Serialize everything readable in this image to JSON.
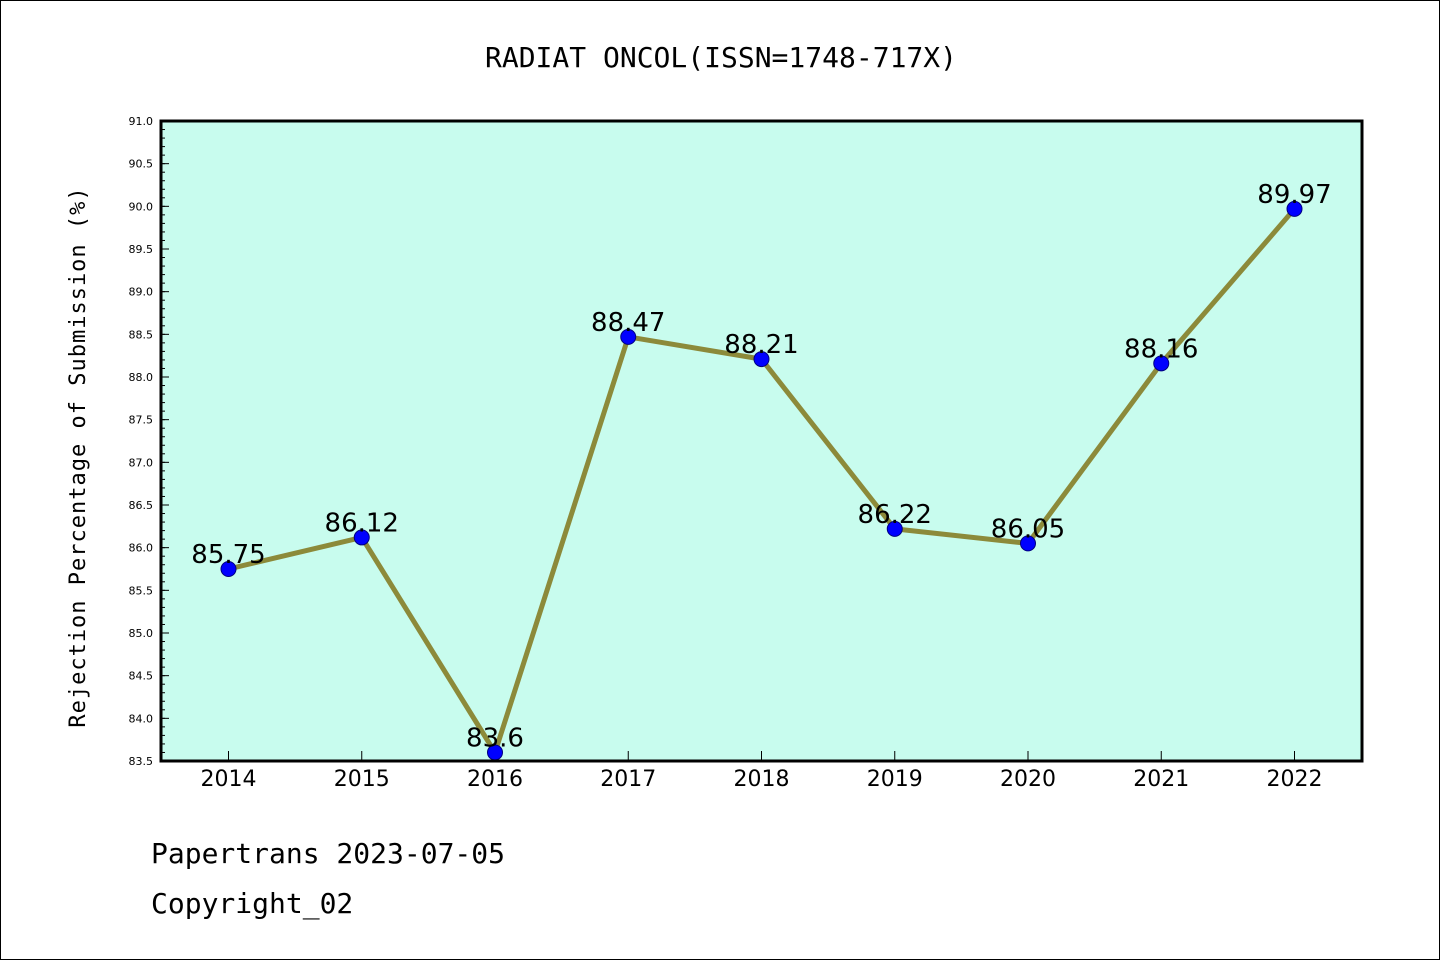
{
  "chart_data": {
    "type": "line",
    "title": "RADIAT ONCOL(ISSN=1748-717X)",
    "ylabel": "Rejection Percentage of Submission (%)",
    "xlabel": "",
    "categories": [
      "2014",
      "2015",
      "2016",
      "2017",
      "2018",
      "2019",
      "2020",
      "2021",
      "2022"
    ],
    "values": [
      85.75,
      86.12,
      83.6,
      88.47,
      88.21,
      86.22,
      86.05,
      88.16,
      89.97
    ],
    "data_labels": [
      "85.75",
      "86.12",
      "83.6",
      "88.47",
      "88.21",
      "86.22",
      "86.05",
      "88.16",
      "89.97"
    ],
    "ylim": [
      83.5,
      91.0
    ],
    "yticks": [
      "83.5",
      "84.0",
      "84.5",
      "85.0",
      "85.5",
      "86.0",
      "86.5",
      "87.0",
      "87.5",
      "88.0",
      "88.5",
      "89.0",
      "89.5",
      "90.0",
      "90.5",
      "91.0"
    ],
    "grid": false,
    "colors": {
      "plot_background": "#c8fcee",
      "line": "#8c8a3a",
      "marker": "#0000ff",
      "marker_edge": "#000080"
    }
  },
  "footer": {
    "line1": "Papertrans 2023-07-05",
    "line2": "Copyright_02"
  }
}
